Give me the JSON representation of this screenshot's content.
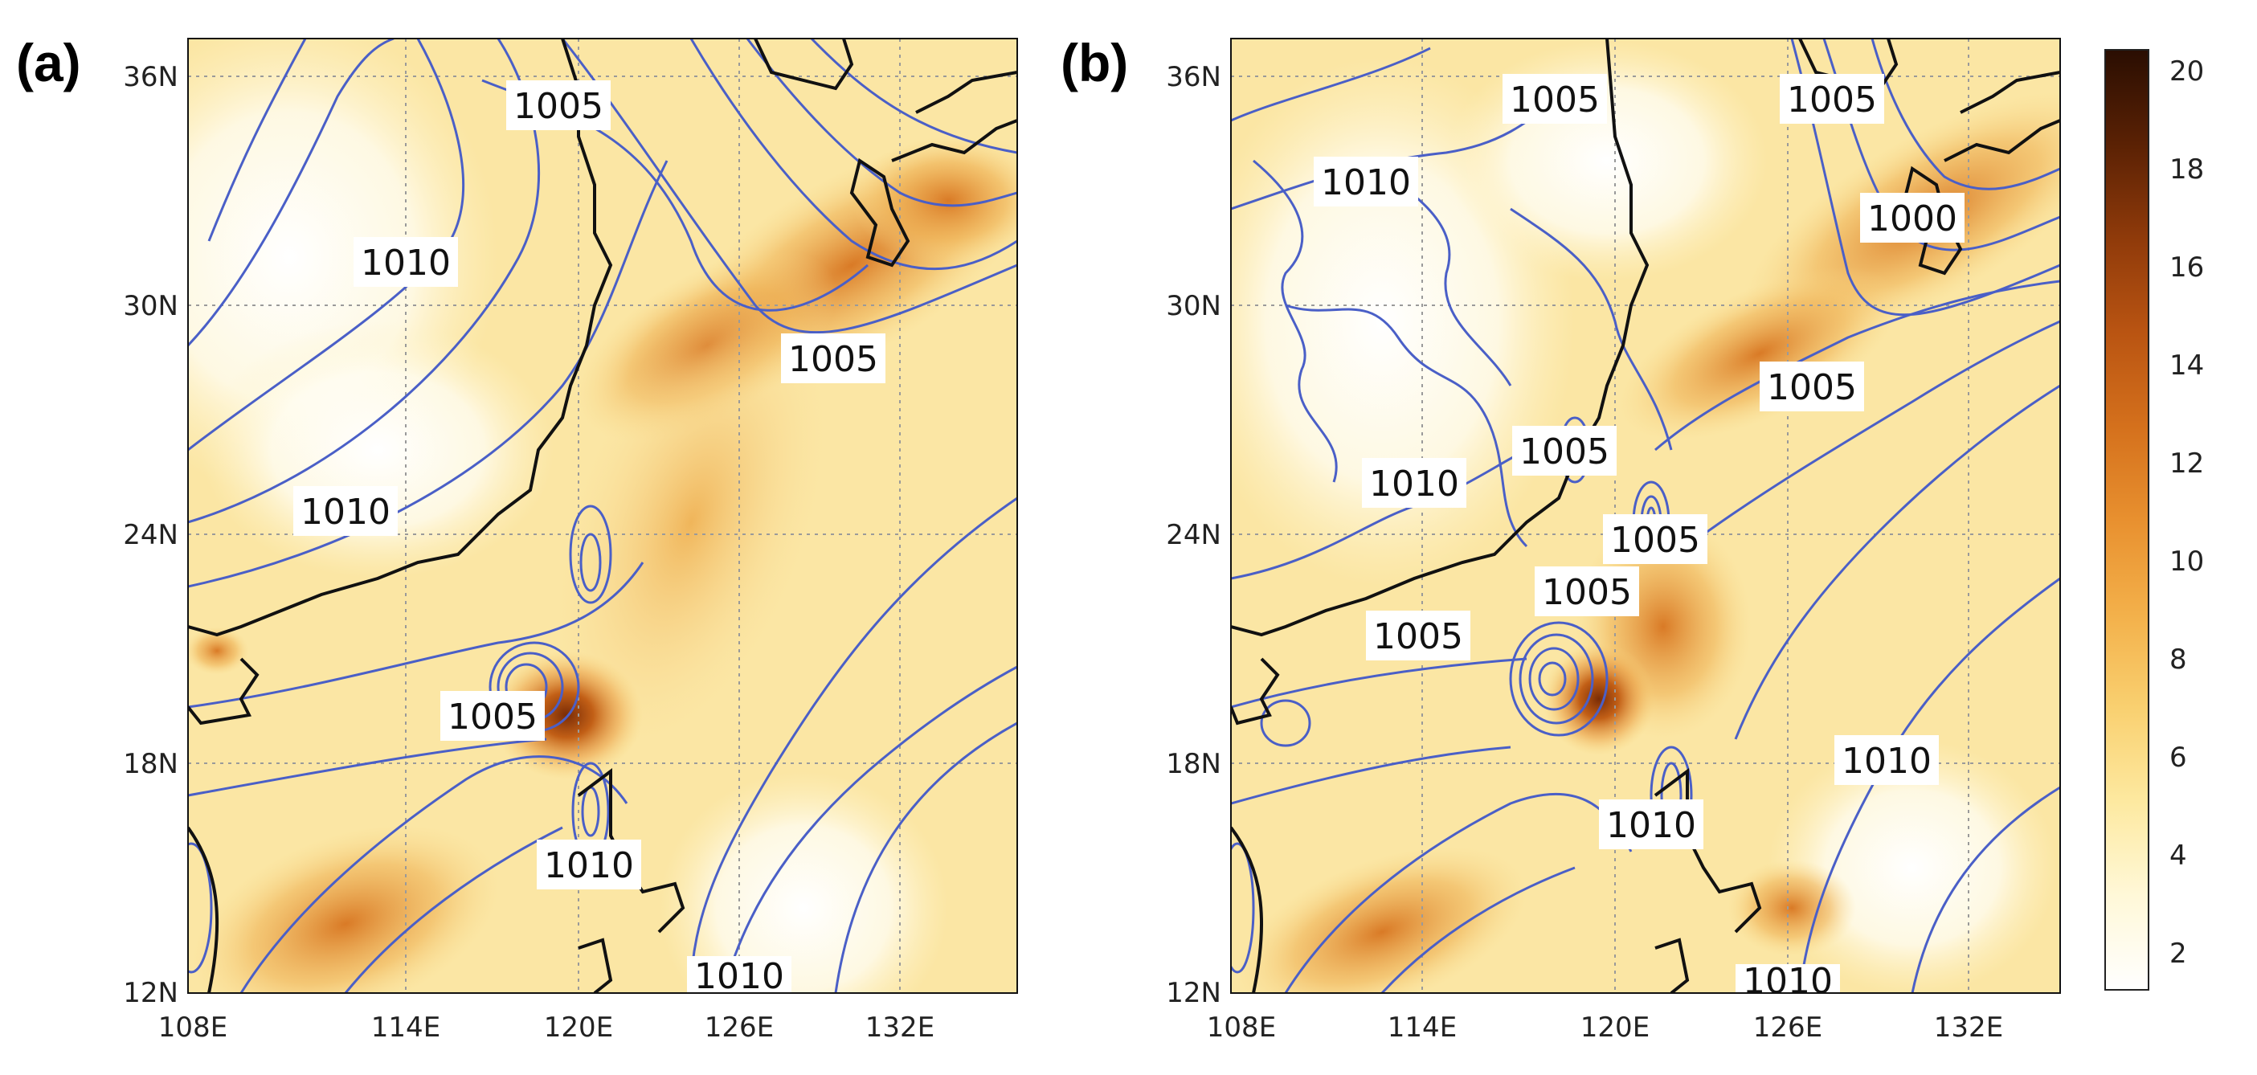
{
  "panels": [
    {
      "id": "a",
      "label": "(a)",
      "lon_ticks": [
        "108E",
        "114E",
        "120E",
        "126E",
        "132E"
      ],
      "lat_ticks": [
        "12N",
        "18N",
        "24N",
        "30N",
        "36N"
      ],
      "contour_labels": [
        "1005",
        "1010",
        "1005",
        "1010",
        "1005",
        "1010",
        "1010"
      ]
    },
    {
      "id": "b",
      "label": "(b)",
      "lon_ticks": [
        "108E",
        "114E",
        "120E",
        "126E",
        "132E"
      ],
      "lat_ticks": [
        "12N",
        "18N",
        "24N",
        "30N",
        "36N"
      ],
      "contour_labels": [
        "1005",
        "1005",
        "1010",
        "1000",
        "1005",
        "1005",
        "1010",
        "1005",
        "1005",
        "1005",
        "1010",
        "1010",
        "1010"
      ]
    }
  ],
  "colorbar": {
    "ticks": [
      "2",
      "4",
      "6",
      "8",
      "10",
      "12",
      "14",
      "16",
      "18",
      "20"
    ],
    "colors": [
      "#ffffff",
      "#fff8d8",
      "#fde9a0",
      "#f9d070",
      "#f3b04a",
      "#e8902f",
      "#d4701c",
      "#b95412",
      "#8f3a0a",
      "#5a2104",
      "#2a0e02"
    ]
  },
  "colors": {
    "contour": "#4a5fc7",
    "coast": "#111111",
    "grid": "#9a9a9a"
  }
}
